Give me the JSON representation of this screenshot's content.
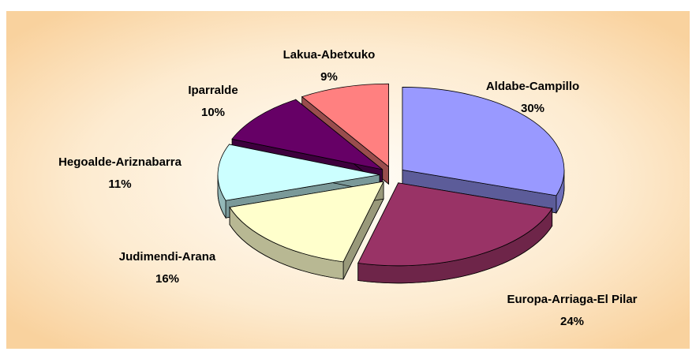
{
  "chart_data": {
    "type": "pie",
    "categories": [
      "Aldabe-Campillo",
      "Europa-Arriaga-El Pilar",
      "Judimendi-Arana",
      "Hegoalde-Ariznabarra",
      "Iparralde",
      "Lakua-Abetxuko"
    ],
    "values": [
      30,
      24,
      16,
      11,
      10,
      9
    ],
    "value_labels": [
      "30%",
      "24%",
      "16%",
      "11%",
      "10%",
      "9%"
    ],
    "colors": [
      "#9999ff",
      "#993366",
      "#ffffcc",
      "#ccffff",
      "#660066",
      "#ff8080"
    ]
  }
}
